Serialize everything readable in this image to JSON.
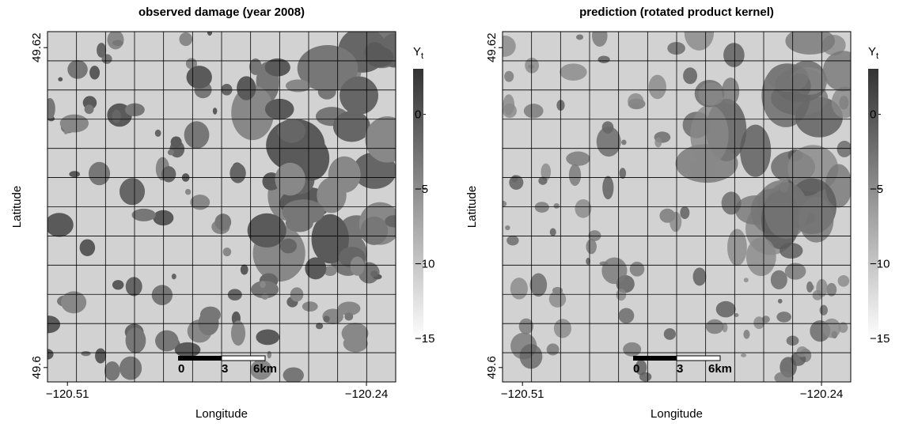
{
  "chart_data": [
    {
      "type": "raster",
      "title": "observed damage (year 2008)",
      "xlabel": "Longitude",
      "ylabel": "Latitude",
      "xlim": [
        -120.528,
        -120.2136
      ],
      "ylim": [
        49.5991,
        49.621
      ],
      "xticks": [
        {
          "value": -120.51,
          "label": "−120.51"
        },
        {
          "value": -120.24,
          "label": "−120.24"
        }
      ],
      "yticks": [
        49.6,
        49.62
      ],
      "colorbar_label": "Y",
      "colorbar_label_sub": "t",
      "clim": [
        -15.1,
        3.05
      ],
      "cticks": [
        0,
        {
          "value": -5,
          "label": "−5"
        },
        {
          "value": -10,
          "label": "−10"
        },
        {
          "value": -15,
          "label": "−15"
        }
      ],
      "colors": [
        "#ffffff",
        "#333333"
      ],
      "grid": true,
      "scale_bar": [
        0,
        3,
        {
          "value": 6,
          "label": "6km"
        }
      ]
    },
    {
      "type": "raster",
      "title": "prediction (rotated product kernel)",
      "xlabel": "Longitude",
      "ylabel": "Latitude",
      "xlim": [
        -120.528,
        -120.2136
      ],
      "ylim": [
        49.5991,
        49.621
      ],
      "xticks": [
        {
          "value": -120.51,
          "label": "−120.51"
        },
        {
          "value": -120.24,
          "label": "−120.24"
        }
      ],
      "yticks": [
        49.6,
        49.62
      ],
      "colorbar_label": "Y",
      "colorbar_label_sub": "t",
      "clim": [
        -15.1,
        3.05
      ],
      "cticks": [
        0,
        {
          "value": -5,
          "label": "−5"
        },
        {
          "value": -10,
          "label": "−10"
        },
        {
          "value": -15,
          "label": "−15"
        }
      ],
      "colors": [
        "#ffffff",
        "#333333"
      ],
      "grid": true,
      "scale_bar": [
        0,
        3,
        {
          "value": 6,
          "label": "6km"
        }
      ]
    }
  ]
}
